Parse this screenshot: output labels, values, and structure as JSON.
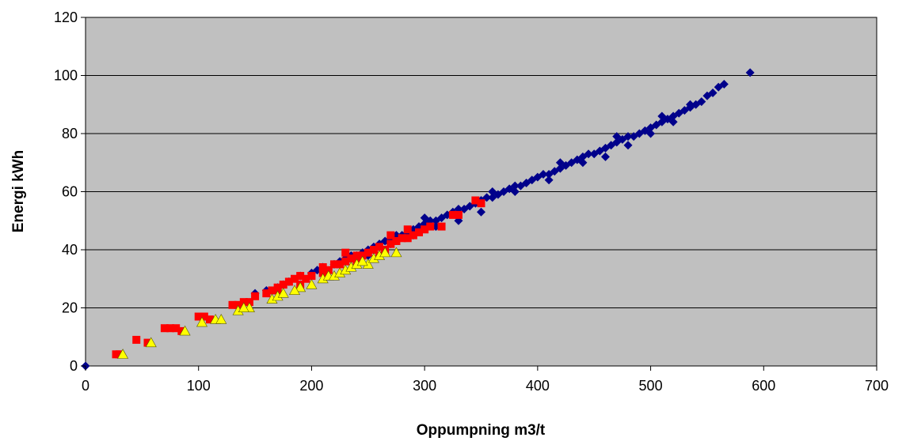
{
  "chart_data": {
    "type": "scatter",
    "title": "",
    "xlabel": "Oppumpning m3/t",
    "ylabel": "Energi kWh",
    "xlim": [
      0,
      700
    ],
    "ylim": [
      0,
      120
    ],
    "xticks": [
      0,
      100,
      200,
      300,
      400,
      500,
      600,
      700
    ],
    "yticks": [
      0,
      20,
      40,
      60,
      80,
      100,
      120
    ],
    "grid": "horizontal",
    "plot_background": "#c0c0c0",
    "legend": "none",
    "series": [
      {
        "marker": "diamond",
        "color": "#00008b",
        "points": [
          [
            0,
            0
          ],
          [
            150,
            25
          ],
          [
            160,
            26
          ],
          [
            170,
            27
          ],
          [
            175,
            28
          ],
          [
            180,
            29
          ],
          [
            190,
            31
          ],
          [
            200,
            32
          ],
          [
            205,
            33
          ],
          [
            210,
            34
          ],
          [
            220,
            35
          ],
          [
            225,
            36
          ],
          [
            230,
            37
          ],
          [
            235,
            38
          ],
          [
            240,
            38
          ],
          [
            245,
            39
          ],
          [
            250,
            40
          ],
          [
            255,
            41
          ],
          [
            260,
            42
          ],
          [
            265,
            43
          ],
          [
            270,
            44
          ],
          [
            275,
            45
          ],
          [
            280,
            45
          ],
          [
            285,
            46
          ],
          [
            290,
            47
          ],
          [
            295,
            48
          ],
          [
            300,
            49
          ],
          [
            305,
            50
          ],
          [
            310,
            50
          ],
          [
            315,
            51
          ],
          [
            320,
            52
          ],
          [
            325,
            53
          ],
          [
            330,
            54
          ],
          [
            335,
            54
          ],
          [
            340,
            55
          ],
          [
            345,
            56
          ],
          [
            350,
            57
          ],
          [
            355,
            58
          ],
          [
            360,
            58
          ],
          [
            365,
            59
          ],
          [
            370,
            60
          ],
          [
            375,
            61
          ],
          [
            380,
            62
          ],
          [
            385,
            62
          ],
          [
            390,
            63
          ],
          [
            395,
            64
          ],
          [
            400,
            65
          ],
          [
            405,
            66
          ],
          [
            410,
            66
          ],
          [
            415,
            67
          ],
          [
            420,
            68
          ],
          [
            425,
            69
          ],
          [
            430,
            70
          ],
          [
            435,
            71
          ],
          [
            440,
            72
          ],
          [
            445,
            73
          ],
          [
            450,
            73
          ],
          [
            455,
            74
          ],
          [
            460,
            75
          ],
          [
            465,
            76
          ],
          [
            470,
            77
          ],
          [
            475,
            78
          ],
          [
            480,
            79
          ],
          [
            485,
            79
          ],
          [
            490,
            80
          ],
          [
            495,
            81
          ],
          [
            500,
            82
          ],
          [
            505,
            83
          ],
          [
            510,
            84
          ],
          [
            515,
            85
          ],
          [
            520,
            86
          ],
          [
            525,
            87
          ],
          [
            530,
            88
          ],
          [
            535,
            89
          ],
          [
            540,
            90
          ],
          [
            545,
            91
          ],
          [
            550,
            93
          ],
          [
            555,
            94
          ],
          [
            560,
            96
          ],
          [
            565,
            97
          ],
          [
            588,
            101
          ],
          [
            330,
            50
          ],
          [
            350,
            53
          ],
          [
            380,
            60
          ],
          [
            410,
            64
          ],
          [
            440,
            70
          ],
          [
            460,
            72
          ],
          [
            480,
            76
          ],
          [
            500,
            80
          ],
          [
            520,
            84
          ],
          [
            535,
            90
          ],
          [
            310,
            48
          ],
          [
            290,
            45
          ],
          [
            270,
            42
          ],
          [
            250,
            38
          ],
          [
            300,
            51
          ],
          [
            360,
            60
          ],
          [
            420,
            70
          ],
          [
            470,
            79
          ],
          [
            510,
            86
          ]
        ]
      },
      {
        "marker": "square",
        "color": "#ff0000",
        "points": [
          [
            27,
            4
          ],
          [
            30,
            4
          ],
          [
            45,
            9
          ],
          [
            55,
            8
          ],
          [
            70,
            13
          ],
          [
            75,
            13
          ],
          [
            80,
            13
          ],
          [
            85,
            12
          ],
          [
            100,
            17
          ],
          [
            105,
            17
          ],
          [
            110,
            16
          ],
          [
            130,
            21
          ],
          [
            135,
            21
          ],
          [
            140,
            22
          ],
          [
            145,
            22
          ],
          [
            150,
            24
          ],
          [
            160,
            25
          ],
          [
            165,
            26
          ],
          [
            170,
            27
          ],
          [
            175,
            28
          ],
          [
            180,
            29
          ],
          [
            185,
            30
          ],
          [
            190,
            31
          ],
          [
            195,
            30
          ],
          [
            200,
            31
          ],
          [
            210,
            34
          ],
          [
            215,
            33
          ],
          [
            220,
            35
          ],
          [
            225,
            35
          ],
          [
            230,
            36
          ],
          [
            235,
            37
          ],
          [
            240,
            38
          ],
          [
            245,
            38
          ],
          [
            250,
            39
          ],
          [
            255,
            40
          ],
          [
            260,
            41
          ],
          [
            265,
            40
          ],
          [
            270,
            42
          ],
          [
            275,
            43
          ],
          [
            280,
            44
          ],
          [
            285,
            44
          ],
          [
            290,
            45
          ],
          [
            295,
            46
          ],
          [
            300,
            47
          ],
          [
            305,
            48
          ],
          [
            315,
            48
          ],
          [
            330,
            52
          ],
          [
            345,
            57
          ],
          [
            350,
            56
          ],
          [
            210,
            32
          ],
          [
            230,
            39
          ],
          [
            260,
            38
          ],
          [
            270,
            45
          ],
          [
            190,
            28
          ],
          [
            170,
            26
          ],
          [
            240,
            36
          ],
          [
            285,
            47
          ],
          [
            325,
            52
          ]
        ]
      },
      {
        "marker": "triangle",
        "color": "#ffff00",
        "points": [
          [
            33,
            4
          ],
          [
            58,
            8
          ],
          [
            88,
            12
          ],
          [
            103,
            15
          ],
          [
            115,
            16
          ],
          [
            120,
            16
          ],
          [
            135,
            19
          ],
          [
            145,
            20
          ],
          [
            165,
            23
          ],
          [
            170,
            24
          ],
          [
            175,
            25
          ],
          [
            190,
            27
          ],
          [
            200,
            28
          ],
          [
            210,
            30
          ],
          [
            215,
            31
          ],
          [
            220,
            31
          ],
          [
            225,
            32
          ],
          [
            230,
            33
          ],
          [
            235,
            34
          ],
          [
            240,
            35
          ],
          [
            250,
            35
          ],
          [
            255,
            37
          ],
          [
            260,
            38
          ],
          [
            265,
            39
          ],
          [
            275,
            39
          ],
          [
            140,
            20
          ],
          [
            185,
            26
          ],
          [
            245,
            36
          ]
        ]
      }
    ]
  }
}
